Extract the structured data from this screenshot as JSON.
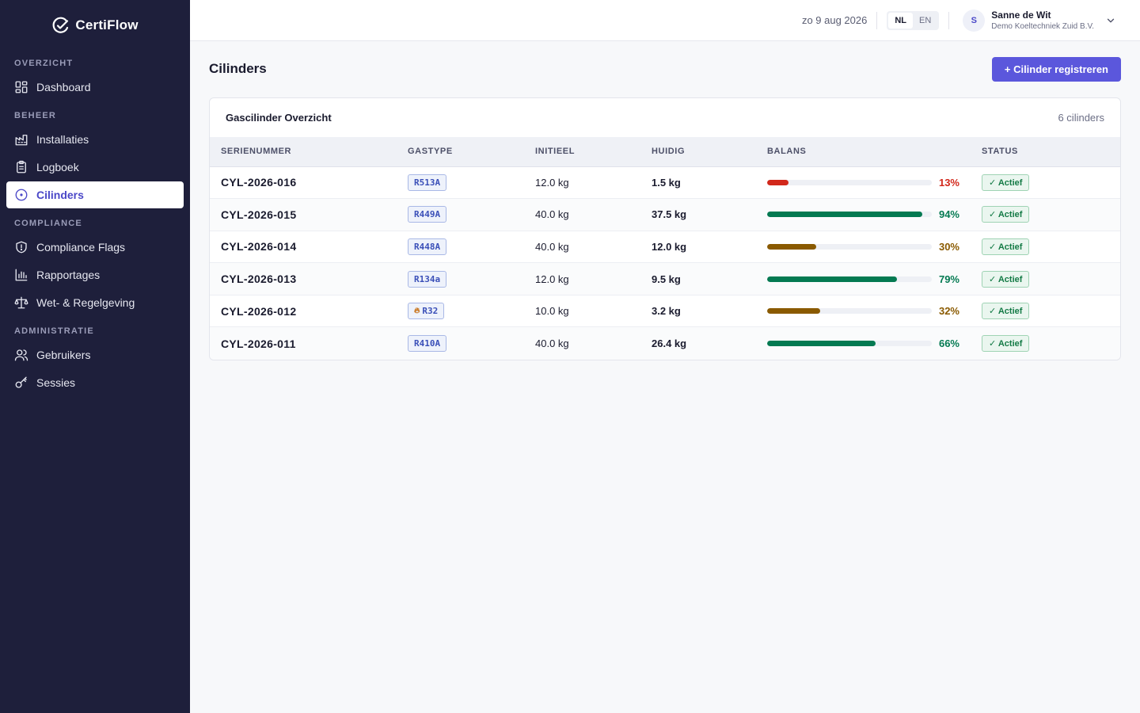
{
  "app": {
    "name": "CertiFlow"
  },
  "sidebar": {
    "sections": [
      {
        "label": "OVERZICHT",
        "items": [
          {
            "label": "Dashboard",
            "icon": "dashboard-icon"
          }
        ]
      },
      {
        "label": "BEHEER",
        "items": [
          {
            "label": "Installaties",
            "icon": "factory-icon"
          },
          {
            "label": "Logboek",
            "icon": "clipboard-icon"
          },
          {
            "label": "Cilinders",
            "icon": "cylinder-icon",
            "active": true
          }
        ]
      },
      {
        "label": "COMPLIANCE",
        "items": [
          {
            "label": "Compliance Flags",
            "icon": "shield-icon"
          },
          {
            "label": "Rapportages",
            "icon": "bar-chart-icon"
          },
          {
            "label": "Wet- & Regelgeving",
            "icon": "scale-icon"
          }
        ]
      },
      {
        "label": "ADMINISTRATIE",
        "items": [
          {
            "label": "Gebruikers",
            "icon": "users-icon"
          },
          {
            "label": "Sessies",
            "icon": "key-icon"
          }
        ]
      }
    ]
  },
  "topbar": {
    "date": "zo 9 aug 2026",
    "languages": [
      "NL",
      "EN"
    ],
    "active_language": "NL",
    "user": {
      "initial": "S",
      "name": "Sanne de Wit",
      "org": "Demo Koeltechniek Zuid B.V."
    }
  },
  "page": {
    "title": "Cilinders",
    "primary_action": "+ Cilinder registreren"
  },
  "card": {
    "title": "Gascilinder Overzicht",
    "count": "6 cilinders",
    "columns": [
      "SERIENUMMER",
      "GASTYPE",
      "INITIEEL",
      "HUIDIG",
      "BALANS",
      "STATUS"
    ],
    "rows": [
      {
        "serial": "CYL-2026-016",
        "gas": "R513A",
        "flammable": false,
        "initial": "12.0 kg",
        "current": "1.5 kg",
        "balance_pct": 13,
        "balance_label": "13%",
        "status": "✓ Actief"
      },
      {
        "serial": "CYL-2026-015",
        "gas": "R449A",
        "flammable": false,
        "initial": "40.0 kg",
        "current": "37.5 kg",
        "balance_pct": 94,
        "balance_label": "94%",
        "status": "✓ Actief"
      },
      {
        "serial": "CYL-2026-014",
        "gas": "R448A",
        "flammable": false,
        "initial": "40.0 kg",
        "current": "12.0 kg",
        "balance_pct": 30,
        "balance_label": "30%",
        "status": "✓ Actief"
      },
      {
        "serial": "CYL-2026-013",
        "gas": "R134a",
        "flammable": false,
        "initial": "12.0 kg",
        "current": "9.5 kg",
        "balance_pct": 79,
        "balance_label": "79%",
        "status": "✓ Actief"
      },
      {
        "serial": "CYL-2026-012",
        "gas": "R32",
        "flammable": true,
        "initial": "10.0 kg",
        "current": "3.2 kg",
        "balance_pct": 32,
        "balance_label": "32%",
        "status": "✓ Actief"
      },
      {
        "serial": "CYL-2026-011",
        "gas": "R410A",
        "flammable": false,
        "initial": "40.0 kg",
        "current": "26.4 kg",
        "balance_pct": 66,
        "balance_label": "66%",
        "status": "✓ Actief"
      }
    ]
  },
  "colors": {
    "sidebar_bg": "#1e1f3b",
    "accent": "#5b57dc",
    "balance_low": "#d2281b",
    "balance_mid": "#8a5a00",
    "balance_high": "#047a52"
  }
}
